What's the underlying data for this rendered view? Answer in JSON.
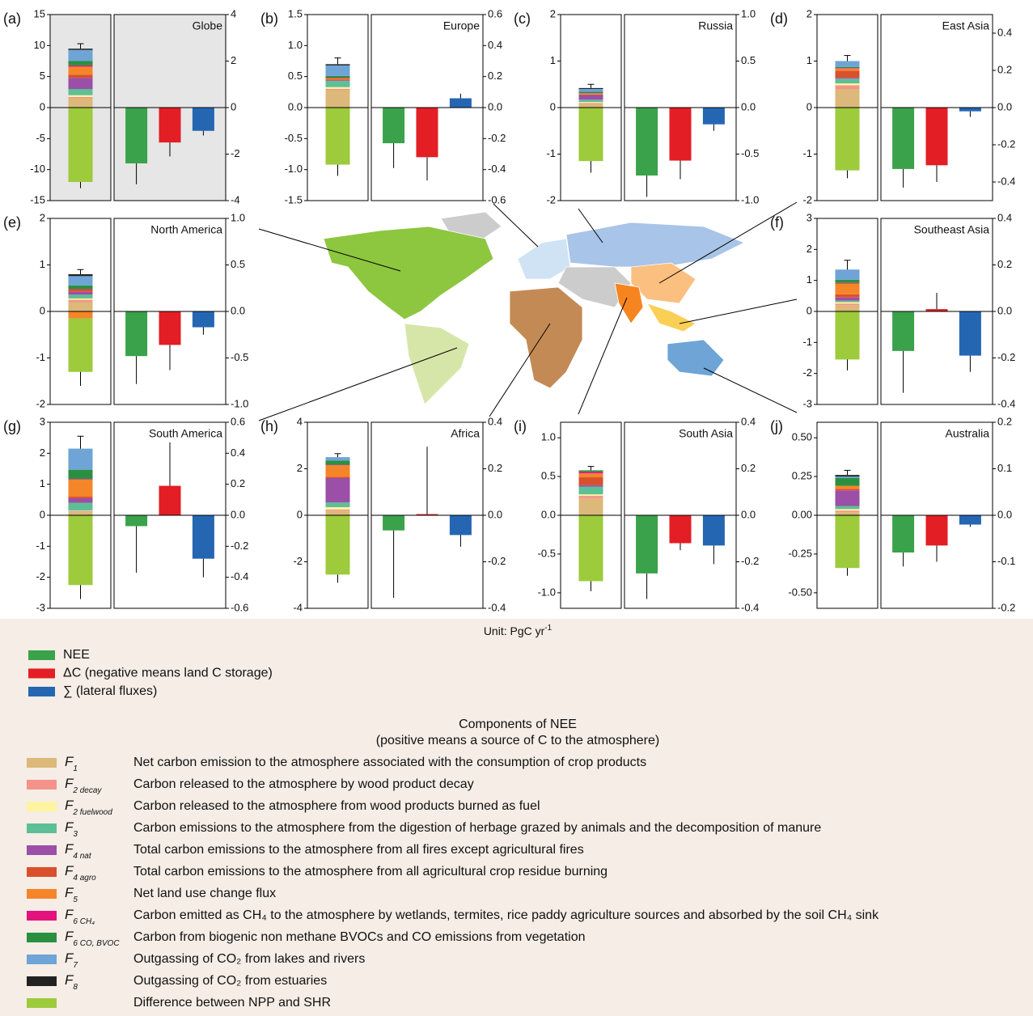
{
  "chart_data": [
    {
      "type": "bar",
      "label": "(a)",
      "title": "Globe",
      "background": "#e6e6e6",
      "ylim": [
        -15,
        15
      ],
      "yticks": [
        15,
        10,
        5,
        0,
        -5,
        -10,
        -15
      ],
      "y2lim": [
        -4,
        4
      ],
      "y2ticks": [
        4,
        2,
        0,
        -2,
        -4
      ],
      "components": [
        1.5,
        0.2,
        0.3,
        1.0,
        1.8,
        0.5,
        1.3,
        0.2,
        0.7,
        1.8,
        0.2,
        -12
      ],
      "stack_errors": [
        0.8,
        1.0
      ],
      "values": [
        -2.4,
        -1.5,
        -1.0
      ],
      "errors": [
        0.9,
        0.6,
        0.2
      ]
    },
    {
      "type": "bar",
      "label": "(b)",
      "title": "Europe",
      "ylim": [
        -1.5,
        1.5
      ],
      "yticks": [
        1.5,
        {
          "value": 1,
          "label": "1.0"
        },
        0.5,
        {
          "value": 0,
          "label": "0.0"
        },
        -0.5,
        {
          "value": -1,
          "label": "-1.0"
        },
        -1.5
      ],
      "y2lim": [
        -0.6,
        0.6
      ],
      "y2ticks": [
        0.6,
        0.4,
        0.2,
        {
          "value": 0,
          "label": "0.0"
        },
        -0.2,
        -0.4,
        -0.6
      ],
      "components": [
        0.28,
        0.02,
        0.03,
        0.1,
        0.01,
        0.01,
        0.02,
        0.01,
        0.03,
        0.17,
        0.02,
        -0.92
      ],
      "stack_errors": [
        0.1,
        0.18
      ],
      "values": [
        -0.23,
        -0.32,
        0.06
      ],
      "errors": [
        0.16,
        0.15,
        0.03
      ]
    },
    {
      "type": "bar",
      "label": "(c)",
      "title": "Russia",
      "ylim": [
        -2,
        2
      ],
      "yticks": [
        2,
        1,
        0,
        -1,
        -2
      ],
      "y2lim": [
        -1,
        1
      ],
      "y2ticks": [
        {
          "value": 1,
          "label": "1.0"
        },
        0.5,
        {
          "value": 0,
          "label": "0.0"
        },
        -0.5,
        {
          "value": -1,
          "label": "-1.0"
        }
      ],
      "components": [
        0.08,
        0.02,
        0.02,
        0.05,
        0.1,
        0.01,
        0.02,
        0.01,
        0.03,
        0.06,
        0.02,
        -1.15
      ],
      "stack_errors": [
        0.08,
        0.25
      ],
      "values": [
        -0.73,
        -0.57,
        -0.18
      ],
      "errors": [
        0.23,
        0.2,
        0.07
      ]
    },
    {
      "type": "bar",
      "label": "(d)",
      "title": "East Asia",
      "ylim": [
        -2,
        2
      ],
      "yticks": [
        2,
        1,
        0,
        -1,
        -2
      ],
      "y2lim": [
        -0.5,
        0.5
      ],
      "y2ticks": [
        0.4,
        0.2,
        {
          "value": 0,
          "label": "0.0"
        },
        -0.2,
        -0.4
      ],
      "components": [
        0.4,
        0.08,
        0.04,
        0.1,
        0.02,
        0.15,
        0.05,
        0.01,
        0.02,
        0.13,
        0,
        -1.35
      ],
      "stack_errors": [
        0.12,
        0.17
      ],
      "values": [
        -0.33,
        -0.31,
        -0.02
      ],
      "errors": [
        0.1,
        0.09,
        0.03
      ]
    },
    {
      "type": "bar",
      "label": "(e)",
      "title": "North America",
      "ylim": [
        -2,
        2
      ],
      "yticks": [
        2,
        1,
        0,
        -1,
        -2
      ],
      "y2lim": [
        -1,
        1
      ],
      "y2ticks": [
        {
          "value": 1,
          "label": "1.0"
        },
        0.5,
        {
          "value": 0,
          "label": "0.0"
        },
        -0.5,
        {
          "value": -1,
          "label": "-1.0"
        }
      ],
      "components": [
        0.2,
        0.05,
        0.03,
        0.08,
        0.06,
        0.05,
        -0.15,
        0.01,
        0.08,
        0.2,
        0.04,
        -1.15
      ],
      "stack_errors": [
        0.1,
        0.3
      ],
      "values": [
        -0.48,
        -0.36,
        -0.17
      ],
      "errors": [
        0.3,
        0.27,
        0.08
      ]
    },
    {
      "type": "bar",
      "label": "(f)",
      "title": "Southeast Asia",
      "ylim": [
        -3,
        3
      ],
      "yticks": [
        3,
        2,
        1,
        0,
        -1,
        -2,
        -3
      ],
      "y2lim": [
        -0.4,
        0.4
      ],
      "y2ticks": [
        0.4,
        0.2,
        {
          "value": 0,
          "label": "0.0"
        },
        -0.2,
        -0.4
      ],
      "components": [
        0.2,
        0.05,
        0.05,
        0.05,
        0.1,
        0.1,
        0.35,
        0.02,
        0.1,
        0.33,
        0,
        -1.55
      ],
      "stack_errors": [
        0.3,
        0.35
      ],
      "values": [
        -0.17,
        0.01,
        -0.19
      ],
      "errors": [
        0.18,
        0.07,
        0.07
      ]
    },
    {
      "type": "bar",
      "label": "(g)",
      "title": "South America",
      "ylim": [
        -3,
        3
      ],
      "yticks": [
        3,
        2,
        1,
        0,
        -1,
        -2,
        -3
      ],
      "y2lim": [
        -0.6,
        0.6
      ],
      "y2ticks": [
        0.6,
        0.4,
        0.2,
        {
          "value": 0,
          "label": "0.0"
        },
        -0.2,
        -0.4,
        -0.6
      ],
      "components": [
        0.1,
        0.03,
        0.02,
        0.25,
        0.15,
        0.05,
        0.55,
        0.02,
        0.3,
        0.68,
        0,
        -2.25
      ],
      "stack_errors": [
        0.4,
        0.45
      ],
      "values": [
        -0.07,
        0.19,
        -0.28
      ],
      "errors": [
        0.3,
        0.28,
        0.12
      ]
    },
    {
      "type": "bar",
      "label": "(h)",
      "title": "Africa",
      "ylim": [
        -4,
        4
      ],
      "yticks": [
        4,
        2,
        0,
        -2,
        -4
      ],
      "y2lim": [
        -0.4,
        0.4
      ],
      "y2ticks": [
        0.4,
        0.2,
        {
          "value": 0,
          "label": "0.0"
        },
        -0.2,
        -0.4
      ],
      "components": [
        0.2,
        0.05,
        0.1,
        0.2,
        1.05,
        0.05,
        0.5,
        0.02,
        0.18,
        0.15,
        0,
        -2.55
      ],
      "stack_errors": [
        0.15,
        0.35
      ],
      "values": [
        -0.065,
        0.005,
        -0.085
      ],
      "errors": [
        0.29,
        0.29,
        0.05
      ]
    },
    {
      "type": "bar",
      "label": "(i)",
      "title": "South Asia",
      "ylim": [
        -1.2,
        1.2
      ],
      "yticks": [
        {
          "value": 1,
          "label": "1.0"
        },
        0.5,
        {
          "value": 0,
          "label": "0.0"
        },
        -0.5,
        {
          "value": -1,
          "label": "-1.0"
        }
      ],
      "y2lim": [
        -0.4,
        0.4
      ],
      "y2ticks": [
        0.4,
        0.2,
        {
          "value": 0,
          "label": "0.0"
        },
        -0.2,
        -0.4
      ],
      "components": [
        0.22,
        0.03,
        0.02,
        0.1,
        0.02,
        0.1,
        0.05,
        0.02,
        0.02,
        0,
        0,
        -0.85
      ],
      "stack_errors": [
        0.05,
        0.13
      ],
      "values": [
        -0.25,
        -0.12,
        -0.13
      ],
      "errors": [
        0.11,
        0.03,
        0.08
      ]
    },
    {
      "type": "bar",
      "label": "(j)",
      "title": "Australia",
      "ylim": [
        -0.6,
        0.6
      ],
      "yticks": [
        {
          "value": 0.5,
          "label": "0.50"
        },
        0.25,
        {
          "value": 0,
          "label": "0.00"
        },
        -0.25,
        {
          "value": -0.5,
          "label": "-0.50"
        }
      ],
      "y2lim": [
        -0.2,
        0.2
      ],
      "y2ticks": [
        0.2,
        0.1,
        {
          "value": 0,
          "label": "0.0"
        },
        -0.1,
        -0.2
      ],
      "components": [
        0.02,
        0.01,
        0.01,
        0.02,
        0.1,
        0.01,
        0.02,
        0,
        0.05,
        0.01,
        0.01,
        -0.34
      ],
      "stack_errors": [
        0.03,
        0.05
      ],
      "values": [
        -0.08,
        -0.065,
        -0.02
      ],
      "errors": [
        0.03,
        0.035,
        0.005
      ]
    }
  ],
  "legend": {
    "unit": "Unit: PgC yr",
    "unit_sup": "-1",
    "fluxes": [
      {
        "name": "NEE",
        "color": "#3aa24a"
      },
      {
        "name": "ΔC (negative means land C storage)",
        "color": "#e31e24"
      },
      {
        "name": "∑ (lateral fluxes)",
        "color": "#2566b3"
      }
    ],
    "components_title": [
      "Components of NEE",
      "(positive means a source of C to the atmosphere)"
    ],
    "components": [
      {
        "symbol": "F",
        "sub": "1",
        "description": "Net carbon emission to the atmosphere associated with the consumption of crop products",
        "color": "#dcb87a"
      },
      {
        "symbol": "F",
        "sub": "2 decay",
        "description": "Carbon released to the atmosphere by wood product decay",
        "color": "#f4938a"
      },
      {
        "symbol": "F",
        "sub": "2 fuelwood",
        "description": "Carbon released to the atmosphere from wood products burned as fuel",
        "color": "#fdf3a0"
      },
      {
        "symbol": "F",
        "sub": "3",
        "description": "Carbon emissions to the atmosphere from the digestion of herbage grazed by animals and the decomposition of manure",
        "color": "#5dbf95"
      },
      {
        "symbol": "F",
        "sub": "4 nat",
        "description": "Total carbon emissions to the atmosphere from all fires except agricultural fires",
        "color": "#9b4fa6"
      },
      {
        "symbol": "F",
        "sub": "4 agro",
        "description": "Total carbon emissions to the atmosphere from all agricultural crop residue burning",
        "color": "#d9502d"
      },
      {
        "symbol": "F",
        "sub": "5",
        "description": "Net land use change flux",
        "color": "#f58529"
      },
      {
        "symbol": "F",
        "sub": "6 CH₄",
        "description": "Carbon emitted as CH₄ to the atmosphere by wetlands, termites, rice paddy agriculture sources and absorbed by the soil CH₄ sink",
        "color": "#e3127d"
      },
      {
        "symbol": "F",
        "sub": "6 CO, BVOC",
        "description": "Carbon from biogenic non methane BVOCs and CO emissions from vegetation",
        "color": "#2a9040"
      },
      {
        "symbol": "F",
        "sub": "7",
        "description": "Outgassing of CO₂ from lakes and rivers",
        "color": "#6ea4d6"
      },
      {
        "symbol": "F",
        "sub": "8",
        "description": "Outgassing of CO₂ from estuaries",
        "color": "#222222"
      },
      {
        "description": "Difference between NPP and SHR",
        "color": "#9dcb3c"
      }
    ]
  }
}
